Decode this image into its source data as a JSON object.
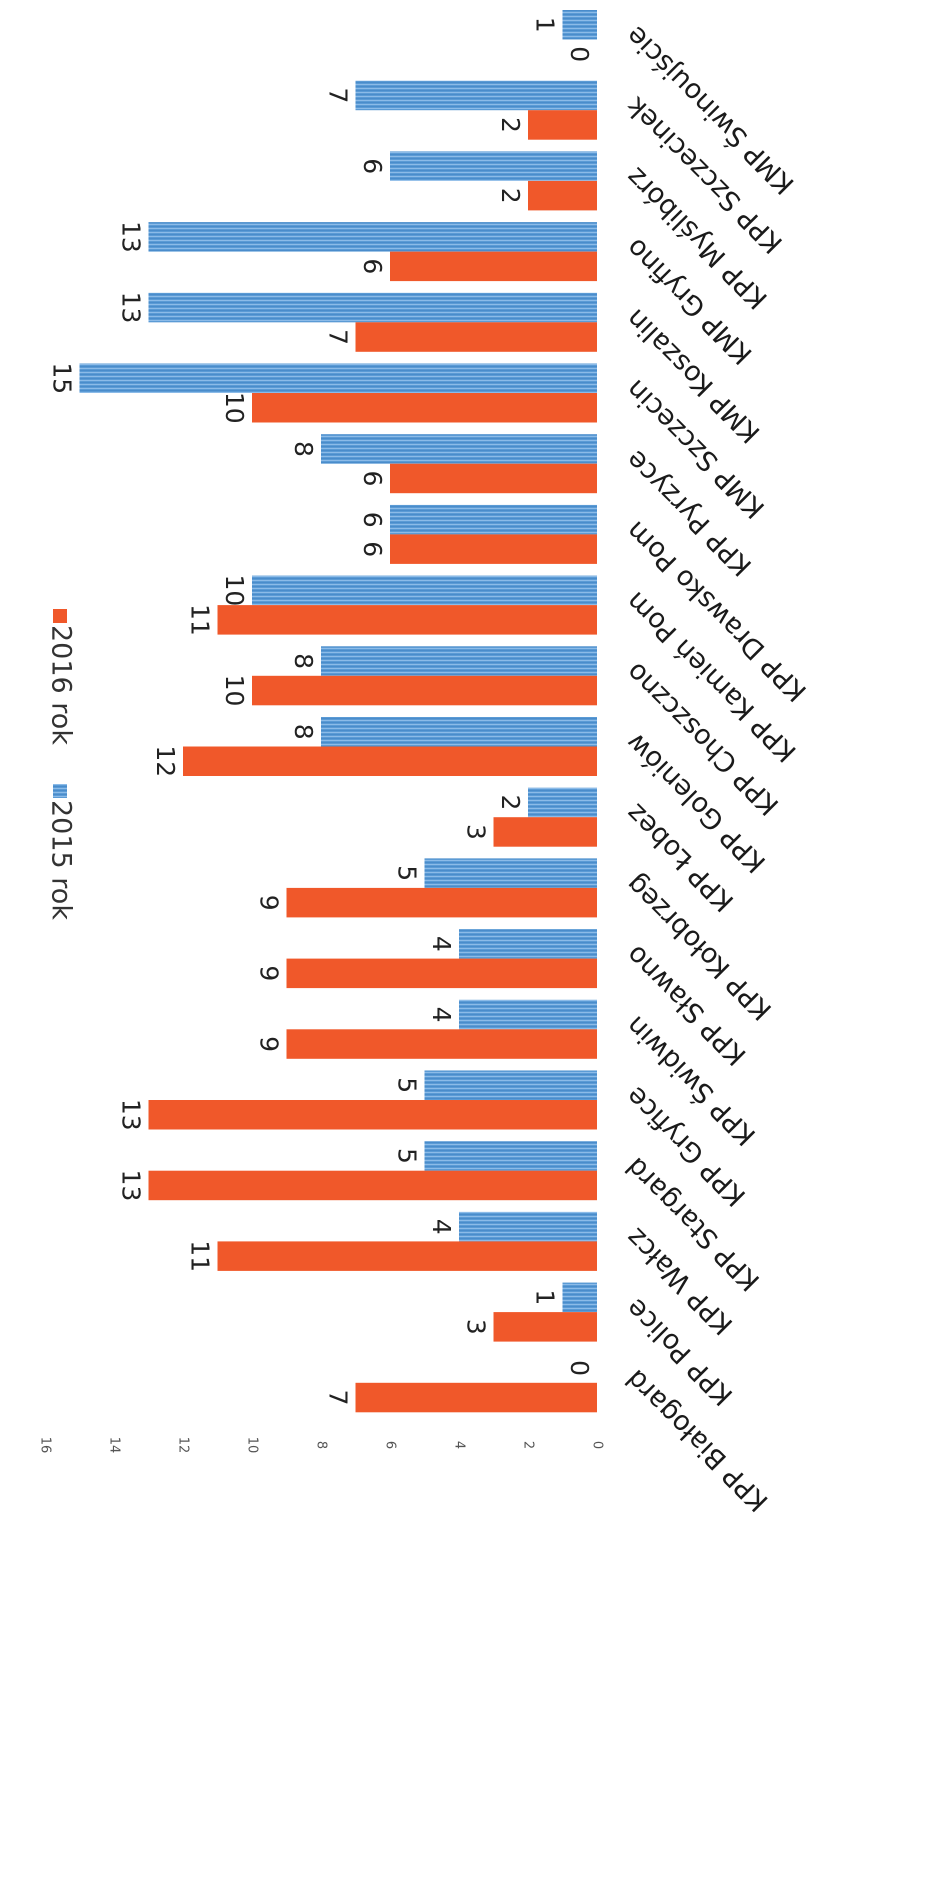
{
  "chart_data": {
    "type": "bar",
    "orientation": "horizontal",
    "categories": [
      "KMP Świnoujście",
      "KPP Szczecinek",
      "KPP Myślibórz",
      "KMP Gryfino",
      "KMP Koszalin",
      "KMP Szczecin",
      "KPP Pyrzyce",
      "KPP Drawsko Pom",
      "KPP Kamień Pom",
      "KPP Choszczno",
      "KPP Goleniów",
      "KPP Łobez",
      "KPP Kołobrzeg",
      "KPP Sławno",
      "KPP Świdwin",
      "KPP Gryfice",
      "KPP Stargard",
      "KPP Wałcz",
      "KPP Police",
      "KPP Białogard"
    ],
    "series": [
      {
        "name": "2015 rok",
        "color": "#5b9bd5",
        "values": [
          1,
          7,
          6,
          13,
          13,
          15,
          8,
          6,
          10,
          8,
          8,
          2,
          5,
          4,
          4,
          5,
          5,
          4,
          1,
          0
        ]
      },
      {
        "name": "2016 rok",
        "color": "#f0582a",
        "values": [
          0,
          2,
          2,
          6,
          7,
          10,
          6,
          6,
          11,
          10,
          12,
          3,
          9,
          9,
          9,
          13,
          13,
          11,
          3,
          7
        ]
      }
    ],
    "value_axis": {
      "min": 0,
      "max": 16,
      "step": 2,
      "ticks": [
        "0",
        "2",
        "4",
        "6",
        "8",
        "10",
        "12",
        "14",
        "16"
      ]
    },
    "grid": false,
    "legend_position": "top",
    "data_labels": true,
    "rotation": "rotated 90 degrees clockwise in the scan"
  }
}
